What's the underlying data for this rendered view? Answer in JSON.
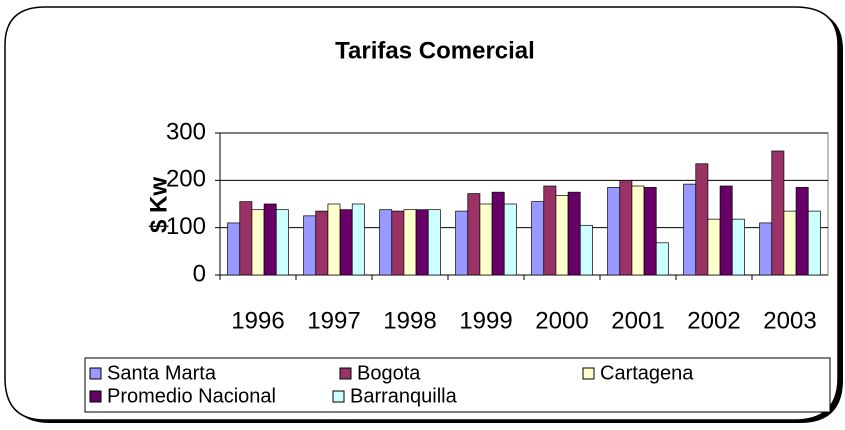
{
  "chart_data": {
    "type": "bar",
    "title": "Tarifas Comercial",
    "y_label": "$ Kw",
    "categories": [
      "1996",
      "1997",
      "1998",
      "1999",
      "2000",
      "2001",
      "2002",
      "2003"
    ],
    "series": [
      {
        "name": "Santa Marta",
        "color": "#9999ff",
        "values": [
          110,
          125,
          138,
          135,
          155,
          185,
          192,
          110
        ]
      },
      {
        "name": "Bogota",
        "color": "#993366",
        "values": [
          155,
          135,
          135,
          172,
          188,
          200,
          235,
          262
        ]
      },
      {
        "name": "Cartagena",
        "color": "#ffffcc",
        "values": [
          138,
          150,
          138,
          150,
          168,
          188,
          118,
          135
        ]
      },
      {
        "name": "Promedio Nacional",
        "color": "#660066",
        "values": [
          150,
          138,
          138,
          175,
          175,
          185,
          188,
          185
        ]
      },
      {
        "name": "Barranquilla",
        "color": "#ccffff",
        "values": [
          138,
          150,
          138,
          150,
          105,
          68,
          118,
          135
        ]
      }
    ],
    "ylim": [
      0,
      300
    ],
    "yticks": [
      0,
      100,
      200,
      300
    ],
    "grid": true
  }
}
